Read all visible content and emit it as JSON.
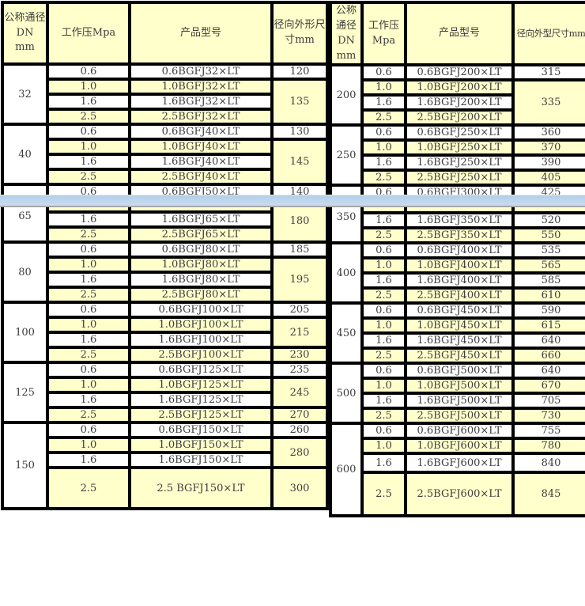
{
  "colors": {
    "cell_yellow": "#ffffcc",
    "cell_white": "#ffffff",
    "grid_black": "#000000",
    "text_gray": "#3d3d3d",
    "splitter_blue_top": "#b4cee9",
    "splitter_blue_bottom": "#c9dbf0",
    "splitter_gray_edge": "#a6a6a6"
  },
  "tables": [
    {
      "side": "left",
      "headers": {
        "dn": "公称通径\nDN\nmm",
        "pressure": "工作压Mpa",
        "model": "产品型号",
        "dim": "径向外形尺\n寸mm"
      },
      "sections": [
        {
          "dn": "32",
          "rows": [
            {
              "p": "0.6",
              "m": "0.6BGFJ32×LT",
              "d": "120",
              "span": 1
            },
            {
              "p": "1.0",
              "m": "1.0BGFJ32×LT",
              "d": "135",
              "span": 3
            },
            {
              "p": "1.6",
              "m": "1.6BGFJ32×LT"
            },
            {
              "p": "2.5",
              "m": "2.5BGFJ32×LT"
            }
          ]
        },
        {
          "dn": "40",
          "rows": [
            {
              "p": "0.6",
              "m": "0.6BGFJ40×LT",
              "d": "130",
              "span": 1
            },
            {
              "p": "1.0",
              "m": "1.0BGFJ40×LT",
              "d": "145",
              "span": 3
            },
            {
              "p": "1.6",
              "m": "1.6BGFJ40×LT"
            },
            {
              "p": "2.5",
              "m": "2.5BGFJ40×LT"
            }
          ]
        },
        {
          "dn": "",
          "rows": [
            {
              "p": "0.6",
              "m": "0.6BGFJ50×LT",
              "d": "140",
              "span": 1
            }
          ]
        },
        {
          "dn": "65",
          "label_top": true,
          "rows": [
            {
              "p": "",
              "m": "",
              "d": "180",
              "span": 3,
              "sliver": true
            },
            {
              "p": "1.6",
              "m": "1.6BGFJ65×LT"
            },
            {
              "p": "2.5",
              "m": "2.5BGFJ65×LT"
            }
          ]
        },
        {
          "dn": "80",
          "rows": [
            {
              "p": "0.6",
              "m": "0.6BGFJ80×LT",
              "d": "185",
              "span": 1
            },
            {
              "p": "1.0",
              "m": "1.0BGFJ80×LT",
              "d": "195",
              "span": 3
            },
            {
              "p": "1.6",
              "m": "1.6BGFJ80×LT"
            },
            {
              "p": "2.5",
              "m": "2.5BGFJ80×LT"
            }
          ]
        },
        {
          "dn": "100",
          "rows": [
            {
              "p": "0.6",
              "m": "0.6BGFJ100×LT",
              "d": "205",
              "span": 1
            },
            {
              "p": "1.0",
              "m": "1.0BGFJ100×LT",
              "d": "215",
              "span": 2
            },
            {
              "p": "1.6",
              "m": "1.6BGFJ100×LT"
            },
            {
              "p": "2.5",
              "m": "2.5BGFJ100×LT",
              "d": "230",
              "span": 1
            }
          ]
        },
        {
          "dn": "125",
          "rows": [
            {
              "p": "0.6",
              "m": "0.6BGFJ125×LT",
              "d": "235",
              "span": 1
            },
            {
              "p": "1.0",
              "m": "1.0BGFJ125×LT",
              "d": "245",
              "span": 2
            },
            {
              "p": "1.6",
              "m": "1.6BGFJ125×LT"
            },
            {
              "p": "2.5",
              "m": "2.5BGFJ125×LT",
              "d": "270",
              "span": 1
            }
          ]
        },
        {
          "dn": "150",
          "rows": [
            {
              "p": "0.6",
              "m": "0.6BGFJ150×LT",
              "d": "260",
              "span": 1
            },
            {
              "p": "1.0",
              "m": "1.0BGFJ150×LT",
              "d": "280",
              "span": 2
            },
            {
              "p": "1.6",
              "m": "1.6BGFJ150×LT"
            },
            {
              "p": "2.5",
              "m": "2.5 BGFJ150×LT",
              "d": "300",
              "span": 1,
              "size": "xl"
            }
          ]
        }
      ]
    },
    {
      "side": "right",
      "headers": {
        "dn": "公称\n通径\nDN\nmm",
        "pressure": "工作压\nMpa",
        "model": "产品型号",
        "dim": "径向外型尺寸mm"
      },
      "sections": [
        {
          "dn": "200",
          "rows": [
            {
              "p": "0.6",
              "m": "0.6BGFJ200×LT",
              "d": "315",
              "span": 1
            },
            {
              "p": "1.0",
              "m": "1.0BGFJ200×LT",
              "d": "335",
              "span": 3
            },
            {
              "p": "1.6",
              "m": "1.6BGFJ200×LT"
            },
            {
              "p": "2.5",
              "m": "2.5BGFJ200×LT"
            }
          ]
        },
        {
          "dn": "250",
          "rows": [
            {
              "p": "0.6",
              "m": "0.6BGFJ250×LT",
              "d": "360",
              "span": 1
            },
            {
              "p": "1.0",
              "m": "1.0BGFJ250×LT",
              "d": "370",
              "span": 1
            },
            {
              "p": "1.6",
              "m": "1.6BGFJ250×LT",
              "d": "390",
              "span": 1
            },
            {
              "p": "2.5",
              "m": "2.5BGFJ250×LT",
              "d": "405",
              "span": 1
            }
          ]
        },
        {
          "dn": "",
          "rows": [
            {
              "p": "0.6",
              "m": "0.6BGFJ300×LT",
              "d": "425",
              "span": 1
            }
          ]
        },
        {
          "dn": "350",
          "label_top": true,
          "rows": [
            {
              "p": "",
              "m": "",
              "d": "",
              "span": 1,
              "sliver": true
            },
            {
              "p": "1.6",
              "m": "1.6BGFJ350×LT",
              "d": "520",
              "span": 1
            },
            {
              "p": "2.5",
              "m": "2.5BGFJ350×LT",
              "d": "550",
              "span": 1
            }
          ]
        },
        {
          "dn": "400",
          "rows": [
            {
              "p": "0.6",
              "m": "0.6BGFJ400×LT",
              "d": "535",
              "span": 1
            },
            {
              "p": "1.0",
              "m": "1.0BGFJ400×LT",
              "d": "565",
              "span": 1
            },
            {
              "p": "1.6",
              "m": "1.6BGFJ400×LT",
              "d": "585",
              "span": 1
            },
            {
              "p": "2.5",
              "m": "2.5BGFJ400×LT",
              "d": "610",
              "span": 1
            }
          ]
        },
        {
          "dn": "450",
          "rows": [
            {
              "p": "0.6",
              "m": "0.6BGFJ450×LT",
              "d": "590",
              "span": 1
            },
            {
              "p": "1.0",
              "m": "1.0BGFJ450×LT",
              "d": "615",
              "span": 1
            },
            {
              "p": "1.6",
              "m": "1.6BGFJ450×LT",
              "d": "640",
              "span": 1
            },
            {
              "p": "2.5",
              "m": "2.5BGFJ450×LT",
              "d": "660",
              "span": 1
            }
          ]
        },
        {
          "dn": "500",
          "rows": [
            {
              "p": "0.6",
              "m": "0.6BGFJ500×LT",
              "d": "640",
              "span": 1
            },
            {
              "p": "1.0",
              "m": "1.0BGFJ500×LT",
              "d": "670",
              "span": 1
            },
            {
              "p": "1.6",
              "m": "1.6BGFJ500×LT",
              "d": "705",
              "span": 1
            },
            {
              "p": "2.5",
              "m": "2.5BGFJ500×LT",
              "d": "730",
              "span": 1
            }
          ]
        },
        {
          "dn": "600",
          "rows": [
            {
              "p": "0.6",
              "m": "0.6BGFJ600×LT",
              "d": "755",
              "span": 1
            },
            {
              "p": "1.0",
              "m": "1.0BGFJ600×LT",
              "d": "780",
              "span": 1
            },
            {
              "p": "1.6",
              "m": "1.6BGFJ600×LT",
              "d": "840",
              "span": 1,
              "size": "tall"
            },
            {
              "p": "2.5",
              "m": "2.5BGFJ600×LT",
              "d": "845",
              "span": 1,
              "size": "xl"
            }
          ]
        }
      ]
    }
  ]
}
